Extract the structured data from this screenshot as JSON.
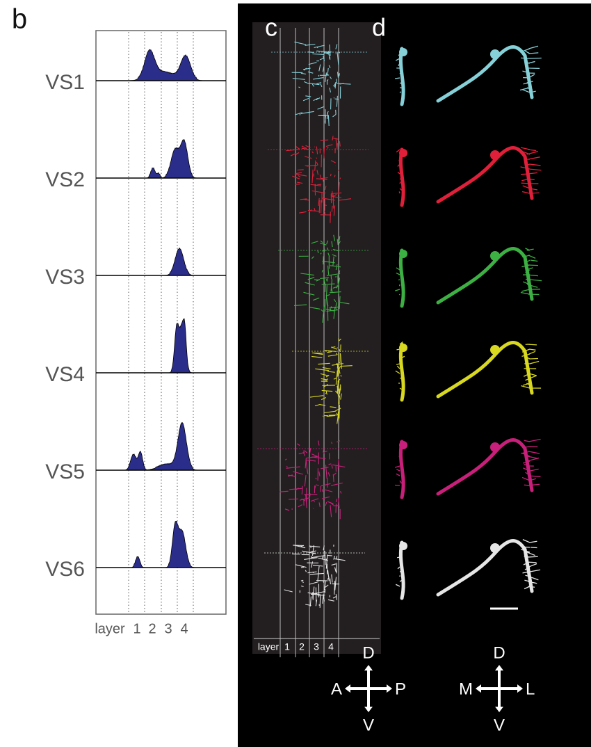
{
  "panel_b": {
    "label": "b",
    "rows": [
      "VS1",
      "VS2",
      "VS3",
      "VS4",
      "VS5",
      "VS6"
    ],
    "layer_axis": {
      "title": "layer",
      "labels": [
        "1",
        "2",
        "3",
        "4"
      ]
    }
  },
  "panel_c": {
    "label": "c",
    "layer_axis": {
      "title": "layer",
      "labels": [
        "1",
        "2",
        "3",
        "4"
      ]
    }
  },
  "panel_d": {
    "label": "d"
  },
  "compass_left": {
    "up": "D",
    "left": "A",
    "right": "P",
    "down": "V"
  },
  "compass_right": {
    "up": "D",
    "left": "M",
    "right": "L",
    "down": "V"
  }
}
